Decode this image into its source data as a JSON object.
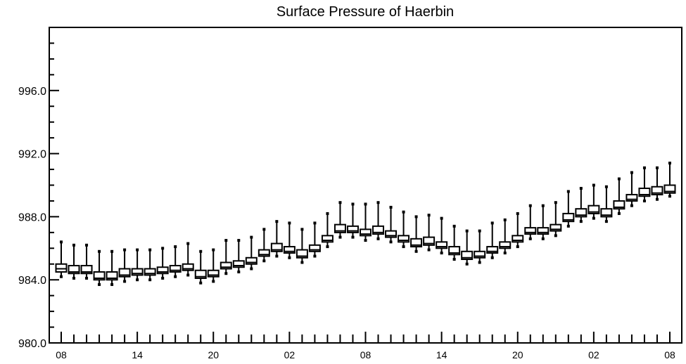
{
  "chart_data": {
    "type": "boxplot",
    "title": "Surface Pressure of Haerbin",
    "xlabel": "",
    "ylabel": "",
    "ylim": [
      980.0,
      1000.0
    ],
    "y_ticks": [
      "980.0",
      "984.0",
      "988.0",
      "992.0",
      "996.0"
    ],
    "y_tick_values": [
      980,
      984,
      988,
      992,
      996
    ],
    "x_tick_labels": [
      "08",
      "14",
      "20",
      "02",
      "08",
      "14",
      "20",
      "02",
      "08"
    ],
    "x_tick_indices": [
      0,
      6,
      12,
      18,
      24,
      30,
      36,
      42,
      48
    ],
    "n_steps": 49,
    "grid": false,
    "series": [
      {
        "median": [
          984.7,
          984.5,
          984.5,
          984.1,
          984.1,
          984.3,
          984.4,
          984.4,
          984.5,
          984.6,
          984.7,
          984.2,
          984.3,
          984.8,
          984.9,
          985.1,
          985.6,
          985.9,
          985.8,
          985.5,
          985.9,
          986.5,
          987.1,
          987.1,
          986.9,
          987.0,
          986.8,
          986.5,
          986.2,
          986.3,
          986.1,
          985.7,
          985.4,
          985.5,
          985.8,
          986.1,
          986.5,
          987.0,
          987.0,
          987.2,
          987.8,
          988.1,
          988.3,
          988.1,
          988.6,
          989.1,
          989.4,
          989.5,
          989.6
        ],
        "q1": [
          984.5,
          984.4,
          984.4,
          984.0,
          984.0,
          984.2,
          984.3,
          984.3,
          984.4,
          984.5,
          984.6,
          984.1,
          984.2,
          984.7,
          984.8,
          985.0,
          985.5,
          985.8,
          985.7,
          985.4,
          985.8,
          986.4,
          987.0,
          987.0,
          986.8,
          986.9,
          986.7,
          986.4,
          986.1,
          986.2,
          986.0,
          985.6,
          985.3,
          985.4,
          985.7,
          986.0,
          986.4,
          986.9,
          986.9,
          987.1,
          987.7,
          988.0,
          988.2,
          988.0,
          988.5,
          989.0,
          989.3,
          989.4,
          989.5
        ],
        "q3": [
          985.0,
          984.9,
          984.9,
          984.5,
          984.5,
          984.7,
          984.7,
          984.7,
          984.8,
          984.9,
          985.0,
          984.6,
          984.6,
          985.1,
          985.2,
          985.4,
          985.9,
          986.3,
          986.1,
          985.9,
          986.2,
          986.8,
          987.5,
          987.4,
          987.2,
          987.4,
          987.1,
          986.8,
          986.6,
          986.7,
          986.4,
          986.1,
          985.8,
          985.8,
          986.1,
          986.4,
          986.8,
          987.3,
          987.3,
          987.5,
          988.2,
          988.5,
          988.7,
          988.5,
          989.0,
          989.4,
          989.8,
          989.9,
          990.0
        ],
        "min": [
          984.2,
          984.1,
          984.1,
          983.7,
          983.7,
          983.9,
          984.0,
          984.0,
          984.1,
          984.2,
          984.3,
          983.8,
          983.9,
          984.4,
          984.5,
          984.7,
          985.2,
          985.5,
          985.4,
          985.1,
          985.5,
          986.1,
          986.7,
          986.7,
          986.5,
          986.6,
          986.4,
          986.1,
          985.8,
          985.9,
          985.7,
          985.3,
          985.0,
          985.1,
          985.4,
          985.7,
          986.1,
          986.6,
          986.6,
          986.8,
          987.4,
          987.7,
          987.9,
          987.7,
          988.2,
          988.7,
          989.0,
          989.1,
          989.3
        ],
        "max": [
          986.4,
          986.2,
          986.2,
          985.8,
          985.8,
          985.9,
          985.9,
          985.9,
          986.0,
          986.1,
          986.3,
          985.8,
          985.9,
          986.5,
          986.5,
          986.7,
          987.2,
          987.7,
          987.6,
          987.2,
          987.6,
          988.2,
          988.9,
          988.8,
          988.8,
          988.9,
          988.6,
          988.3,
          988.0,
          988.1,
          987.9,
          987.4,
          987.1,
          987.1,
          987.6,
          987.8,
          988.2,
          988.7,
          988.7,
          988.9,
          989.6,
          989.8,
          990.0,
          989.9,
          990.4,
          990.8,
          991.1,
          991.1,
          991.4
        ]
      }
    ]
  }
}
